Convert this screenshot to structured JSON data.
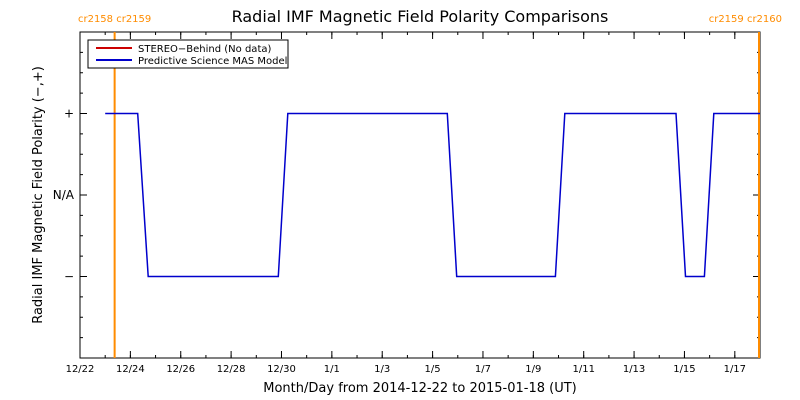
{
  "chart_data": {
    "type": "line",
    "title": "Radial IMF Magnetic Field Polarity Comparisons",
    "xlabel": "Month/Day from 2014-12-22 to 2015-01-18 (UT)",
    "ylabel": "Radial IMF Magnetic Field Polarity (−,+)",
    "x_start": "2014-12-22",
    "x_end": "2015-01-18",
    "xlim": [
      "2014-12-22",
      "2015-01-18"
    ],
    "x_tick_dates": [
      "2014-12-22",
      "2014-12-24",
      "2014-12-26",
      "2014-12-28",
      "2014-12-30",
      "2015-01-01",
      "2015-01-03",
      "2015-01-05",
      "2015-01-07",
      "2015-01-09",
      "2015-01-11",
      "2015-01-13",
      "2015-01-15",
      "2015-01-17"
    ],
    "x_tick_labels": [
      "12/22",
      "12/24",
      "12/26",
      "12/28",
      "12/30",
      "1/1",
      "1/3",
      "1/5",
      "1/7",
      "1/9",
      "1/11",
      "1/13",
      "1/15",
      "1/17"
    ],
    "y_ticks": [
      1,
      0,
      -1
    ],
    "y_tick_labels": [
      "+",
      "N/A",
      "−"
    ],
    "ylim": [
      -2,
      2
    ],
    "legend": {
      "placement": "top-left",
      "entries": [
        {
          "label": "STEREO−Behind (No data)",
          "color": "#cc0000"
        },
        {
          "label": "Predictive Science MAS Model",
          "color": "#0000cc"
        }
      ]
    },
    "series": [
      {
        "name": "Predictive Science MAS Model",
        "color": "#0000cc",
        "points": [
          [
            "2014-12-23",
            1
          ],
          [
            "2014-12-24 07:00",
            1
          ],
          [
            "2014-12-24 17:00",
            -1
          ],
          [
            "2014-12-29 21:00",
            -1
          ],
          [
            "2014-12-30 06:00",
            1
          ],
          [
            "2015-01-05 14:00",
            1
          ],
          [
            "2015-01-05 23:00",
            -1
          ],
          [
            "2015-01-09 21:00",
            -1
          ],
          [
            "2015-01-10 06:00",
            1
          ],
          [
            "2015-01-14 16:00",
            1
          ],
          [
            "2015-01-15 01:00",
            -1
          ],
          [
            "2015-01-15 19:00",
            -1
          ],
          [
            "2015-01-16 04:00",
            1
          ],
          [
            "2015-01-18",
            1
          ]
        ]
      }
    ],
    "carrington_markers": [
      {
        "date": "2014-12-23 09:00",
        "labels": [
          "cr2158",
          "cr2159"
        ],
        "color": "#ff8c00"
      },
      {
        "date": "2015-01-18",
        "labels": [
          "cr2159",
          "cr2160"
        ],
        "color": "#ff8c00"
      }
    ],
    "grid": false
  },
  "colors": {
    "axis": "#000000",
    "series": "#0000cc",
    "stereo": "#cc0000",
    "rotation": "#ff8c00"
  }
}
